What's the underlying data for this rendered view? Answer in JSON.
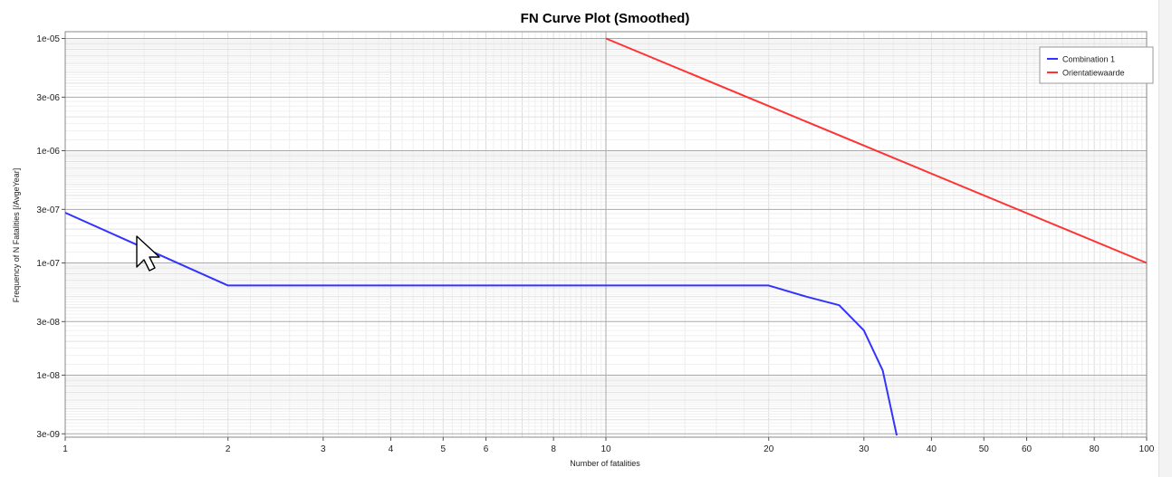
{
  "chart_data": {
    "type": "line",
    "title": "FN Curve Plot (Smoothed)",
    "xlabel": "Number of fatalities",
    "ylabel": "Frequency of N Fatalities [/AvgeYear]",
    "x_scale": "log",
    "y_scale": "log",
    "xlim": [
      1,
      100
    ],
    "ylim": [
      2.8e-09,
      1.15e-05
    ],
    "grid": true,
    "legend_position": "top-right",
    "x_ticks": [
      {
        "value": 1,
        "label": "1"
      },
      {
        "value": 2,
        "label": "2"
      },
      {
        "value": 3,
        "label": "3"
      },
      {
        "value": 4,
        "label": "4"
      },
      {
        "value": 5,
        "label": "5"
      },
      {
        "value": 6,
        "label": "6"
      },
      {
        "value": 8,
        "label": "8"
      },
      {
        "value": 10,
        "label": "10"
      },
      {
        "value": 20,
        "label": "20"
      },
      {
        "value": 30,
        "label": "30"
      },
      {
        "value": 40,
        "label": "40"
      },
      {
        "value": 50,
        "label": "50"
      },
      {
        "value": 60,
        "label": "60"
      },
      {
        "value": 80,
        "label": "80"
      },
      {
        "value": 100,
        "label": "100"
      }
    ],
    "y_ticks": [
      {
        "value": 1e-05,
        "label": "1e-05"
      },
      {
        "value": 3e-06,
        "label": "3e-06"
      },
      {
        "value": 1e-06,
        "label": "1e-06"
      },
      {
        "value": 3e-07,
        "label": "3e-07"
      },
      {
        "value": 1e-07,
        "label": "1e-07"
      },
      {
        "value": 3e-08,
        "label": "3e-08"
      },
      {
        "value": 1e-08,
        "label": "1e-08"
      },
      {
        "value": 3e-09,
        "label": "3e-09"
      }
    ],
    "series": [
      {
        "name": "Combination 1",
        "color": "#3333ff",
        "x": [
          1,
          2,
          20,
          23.5,
          27,
          30,
          32.5,
          34.5
        ],
        "y": [
          2.8e-07,
          6.3e-08,
          6.3e-08,
          5e-08,
          4.2e-08,
          2.5e-08,
          1.1e-08,
          2.9e-09
        ]
      },
      {
        "name": "Orientatiewaarde",
        "color": "#ff3333",
        "x": [
          10,
          100
        ],
        "y": [
          1e-05,
          1e-07
        ]
      }
    ]
  }
}
